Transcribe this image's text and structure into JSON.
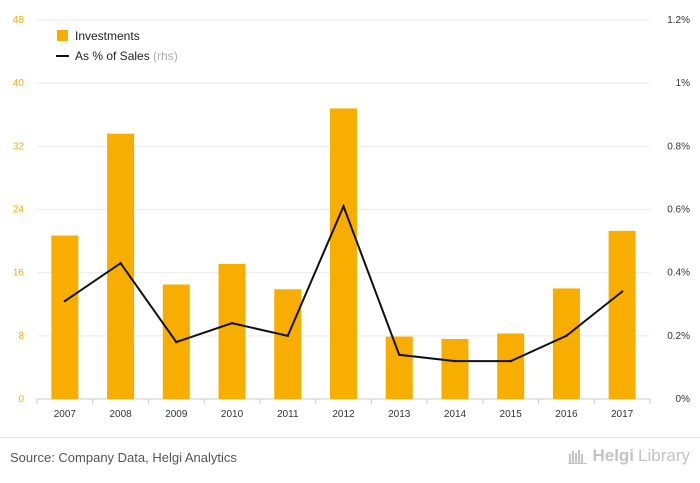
{
  "chart_data": {
    "type": "bar",
    "categories": [
      "2007",
      "2008",
      "2009",
      "2010",
      "2011",
      "2012",
      "2013",
      "2014",
      "2015",
      "2016",
      "2017"
    ],
    "series": [
      {
        "name": "Investments",
        "type": "bar",
        "axis": "left",
        "color": "#f7ae00",
        "values": [
          20.7,
          33.6,
          14.5,
          17.1,
          13.9,
          36.8,
          7.9,
          7.6,
          8.3,
          14.0,
          21.3
        ]
      },
      {
        "name": "As % of Sales",
        "name_suffix": "(rhs)",
        "type": "line",
        "axis": "right",
        "color": "#111111",
        "values": [
          0.31,
          0.43,
          0.18,
          0.24,
          0.2,
          0.61,
          0.14,
          0.12,
          0.12,
          0.2,
          0.34
        ]
      }
    ],
    "yaxis_left": {
      "min": 0,
      "max": 48,
      "ticks": [
        "0",
        "8",
        "16",
        "24",
        "32",
        "40",
        "48"
      ],
      "tick_values": [
        0,
        8,
        16,
        24,
        32,
        40,
        48
      ]
    },
    "yaxis_right": {
      "min": 0,
      "max": 1.2,
      "ticks": [
        "0%",
        "0.2%",
        "0.4%",
        "0.6%",
        "0.8%",
        "1%",
        "1.2%"
      ],
      "tick_values": [
        0,
        0.2,
        0.4,
        0.6,
        0.8,
        1.0,
        1.2
      ]
    },
    "title": "",
    "xlabel": "",
    "ylabel": "",
    "grid": true,
    "legend_position": "top-left"
  },
  "footer": {
    "source": "Source: Company Data, Helgi Analytics",
    "brand_part1": "Helgi",
    "brand_part2": "Library"
  },
  "colors": {
    "accent": "#f7ae00",
    "left_axis_text": "#f7ae00",
    "grid": "#ebebeb",
    "axis_text": "#333333"
  }
}
